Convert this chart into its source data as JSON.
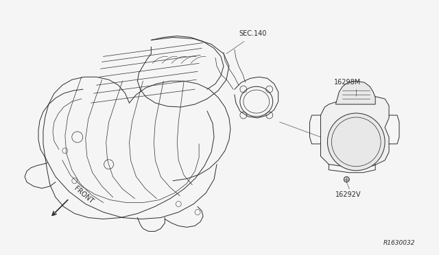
{
  "bg_color": "#f5f5f5",
  "line_color": "#2a2a2a",
  "diagram_id": "R1630032",
  "fig_width": 6.4,
  "fig_height": 3.72,
  "dpi": 100,
  "sec140_label": "SEC.140",
  "label_16298M": "16298M",
  "label_16292V": "16292V",
  "label_FRONT": "FRONT",
  "manifold_color": "#f0f0f0",
  "throttle_color": "#ebebeb"
}
